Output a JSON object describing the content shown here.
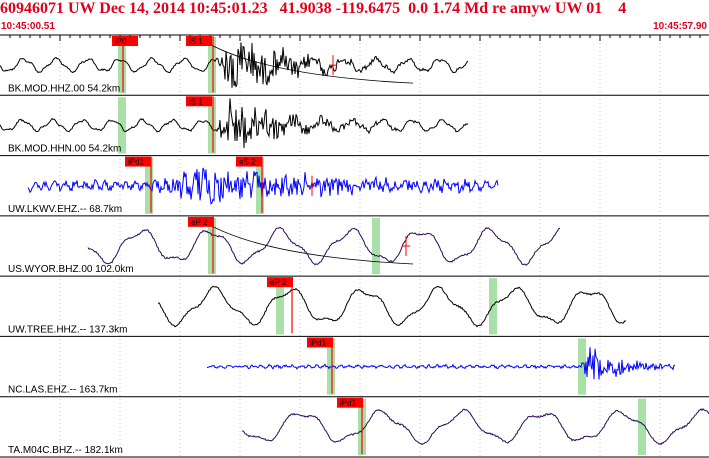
{
  "header": {
    "title": "60946071 UW Dec 14, 2014 10:45:01.23   41.9038 -119.6475  0.0 1.74 Md re amyw UW 01    4",
    "start_time": "10:45:00.51",
    "end_time": "10:45:57.90"
  },
  "colors": {
    "header_text": "#e0001b",
    "pick_label_bg": "#ff0000",
    "pick_line": "#ff0000",
    "window_marker": "#a8e0a8",
    "trace_black": "#000000",
    "trace_blue": "#0000ff",
    "trace_purple": "#2a0a5a"
  },
  "traces": [
    {
      "label": "BK.MOD.HHZ.00 54.2km",
      "color": "black",
      "picks": [
        "iP0",
        "iS 1"
      ],
      "markers": [
        "window-start",
        "window-end"
      ]
    },
    {
      "label": "BK.MOD.HHN.00 54.2km",
      "color": "black",
      "picks": [
        "iS 1"
      ],
      "markers": [
        "window-start",
        "window-end"
      ]
    },
    {
      "label": "UW.LKWV.EHZ.-- 68.7km",
      "color": "blue",
      "picks": [
        "iPd1",
        "eS 2"
      ],
      "markers": [
        "window-start",
        "window-end"
      ]
    },
    {
      "label": "US.WYOR.BHZ.00 102.0km",
      "color": "purple",
      "picks": [
        "eP 2"
      ],
      "markers": [
        "window-start",
        "window-end"
      ]
    },
    {
      "label": "UW.TREE.HHZ.-- 137.3km",
      "color": "black",
      "picks": [
        "eP 2"
      ],
      "markers": [
        "window-start",
        "window-end"
      ]
    },
    {
      "label": "NC.LAS.EHZ.-- 163.7km",
      "color": "blue",
      "picks": [
        "iPd1"
      ],
      "markers": [
        "window-start",
        "window-end"
      ]
    },
    {
      "label": "TA.M04C.BHZ.-- 182.1km",
      "color": "purple",
      "picks": [
        "iPd1"
      ],
      "markers": [
        "window-start",
        "window-end"
      ]
    }
  ]
}
